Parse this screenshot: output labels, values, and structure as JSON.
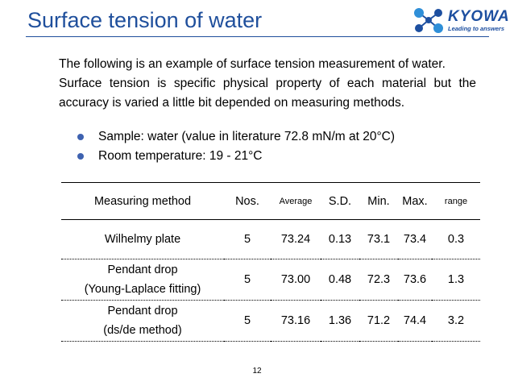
{
  "slide": {
    "title": "Surface tension of water",
    "page_number": "12"
  },
  "logo": {
    "name": "KYOWA",
    "tagline": "Leading to answers",
    "color": "#1d4fa0"
  },
  "intro": {
    "line1": "The following is an example of surface tension measurement of water.",
    "line2": "Surface tension is specific physical property of each material but the accuracy is varied a little bit depended on measuring methods."
  },
  "bullets": [
    "Sample: water (value in literature 72.8 mN/m at 20°C)",
    "Room temperature: 19 - 21°C"
  ],
  "table": {
    "headers": [
      "Measuring method",
      "Nos.",
      "Average",
      "S.D.",
      "Min.",
      "Max.",
      "range"
    ],
    "rows": [
      {
        "method_line1": "Wilhelmy plate",
        "method_line2": "",
        "nos": "5",
        "average": "73.24",
        "sd": "0.13",
        "min": "73.1",
        "max": "73.4",
        "range": "0.3"
      },
      {
        "method_line1": "Pendant drop",
        "method_line2": "(Young-Laplace fitting)",
        "nos": "5",
        "average": "73.00",
        "sd": "0.48",
        "min": "72.3",
        "max": "73.6",
        "range": "1.3"
      },
      {
        "method_line1": "Pendant drop",
        "method_line2": "(ds/de method)",
        "nos": "5",
        "average": "73.16",
        "sd": "1.36",
        "min": "71.2",
        "max": "74.4",
        "range": "3.2"
      }
    ]
  },
  "colors": {
    "title": "#1f4f9c",
    "bullet": "#3e62b0"
  }
}
